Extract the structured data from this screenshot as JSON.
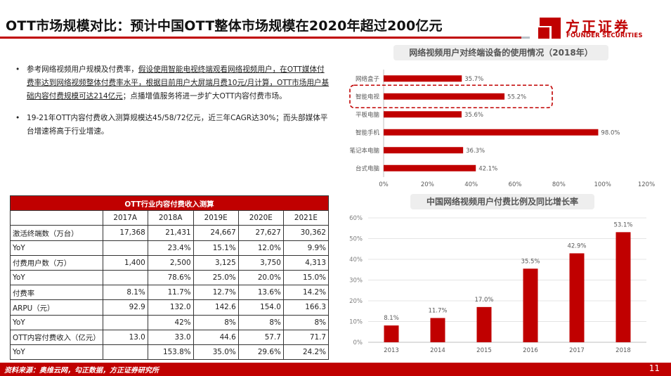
{
  "header": {
    "title": "OTT市场规模对比：预计中国OTT整体市场规模在2020年超过200亿元",
    "logo_cn": "方正证券",
    "logo_en": "FOUNDER SECURITIES"
  },
  "bullets": {
    "b1_pre": "参考网络视频用户规模及付费率，",
    "b1_u": "假设使用智能电视终端观看网络视频用户，在OTT媒体付费率达到网络视频整体付费率水平，根据目前用户大屏端月费10元/月计算，OTT市场用户基础内容付费规模可达214亿元",
    "b1_post": "；点播增值服务将进一步扩大OTT内容付费市场。",
    "b2": "19-21年OTT内容付费收入测算规模达45/58/72亿元，近三年CAGR达30%；而头部媒体平台增速将高于行业增速。"
  },
  "table": {
    "caption": "OTT行业内容付费收入测算",
    "headers": [
      "2017A",
      "2018A",
      "2019E",
      "2020E",
      "2021E"
    ],
    "rows": [
      {
        "label": "激活终端数（万台）",
        "values": [
          "17,368",
          "21,431",
          "24,667",
          "27,627",
          "30,362"
        ]
      },
      {
        "label": "YoY",
        "values": [
          "",
          "23.4%",
          "15.1%",
          "12.0%",
          "9.9%"
        ]
      },
      {
        "label": "付费用户数（万）",
        "values": [
          "1,400",
          "2,500",
          "3,125",
          "3,750",
          "4,313"
        ]
      },
      {
        "label": "YoY",
        "values": [
          "",
          "78.6%",
          "25.0%",
          "20.0%",
          "15.0%"
        ]
      },
      {
        "label": "付费率",
        "values": [
          "8.1%",
          "11.7%",
          "12.7%",
          "13.6%",
          "14.2%"
        ]
      },
      {
        "label": "ARPU（元）",
        "values": [
          "92.9",
          "132.0",
          "142.6",
          "154.0",
          "166.3"
        ]
      },
      {
        "label": "YoY",
        "values": [
          "",
          "42%",
          "8%",
          "8%",
          "8%"
        ]
      },
      {
        "label": "OTT内容付费收入（亿元）",
        "values": [
          "13.0",
          "33.0",
          "44.6",
          "57.7",
          "71.7"
        ]
      },
      {
        "label": "YoY",
        "values": [
          "",
          "153.8%",
          "35.0%",
          "29.6%",
          "24.2%"
        ]
      }
    ]
  },
  "chart_data": [
    {
      "type": "bar",
      "orientation": "horizontal",
      "title": "网络视频用户对终端设备的使用情况（2018年）",
      "categories": [
        "网络盒子",
        "智能电视",
        "平板电脑",
        "智能手机",
        "笔记本电脑",
        "台式电脑"
      ],
      "values": [
        35.7,
        55.2,
        35.6,
        98.0,
        36.3,
        42.1
      ],
      "value_labels": [
        "35.7%",
        "55.2%",
        "35.6%",
        "98.0%",
        "36.3%",
        "42.1%"
      ],
      "xticks": [
        "0%",
        "20%",
        "40%",
        "60%",
        "80%",
        "100%",
        "120%"
      ],
      "xlim": [
        0,
        120
      ],
      "highlight": "智能电视",
      "color": "#c00000"
    },
    {
      "type": "bar",
      "title": "中国网络视频用户付费比例及同比增长率",
      "categories": [
        "2013",
        "2014",
        "2015",
        "2016",
        "2017",
        "2018"
      ],
      "values": [
        8.1,
        11.7,
        17.0,
        35.5,
        42.9,
        53.1
      ],
      "value_labels": [
        "8.1%",
        "11.7%",
        "17.0%",
        "35.5%",
        "42.9%",
        "53.1%"
      ],
      "yticks": [
        "0%",
        "10%",
        "20%",
        "30%",
        "40%",
        "50%",
        "60%"
      ],
      "ylim": [
        0,
        60
      ],
      "color": "#c00000"
    }
  ],
  "footer": {
    "source": "资料来源：奥维云网，勾正数据，方正证券研究所",
    "page": "11"
  },
  "colors": {
    "accent": "#c00000",
    "rule_gray": "#b9bfc6",
    "title_bg": "#eeeeee"
  }
}
